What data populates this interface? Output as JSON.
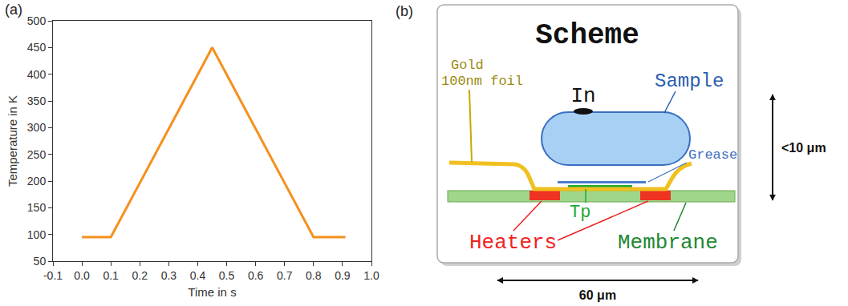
{
  "chart_data": {
    "type": "line",
    "label": "(a)",
    "x": [
      0,
      0.1,
      0.45,
      0.8,
      0.91
    ],
    "values": [
      95,
      95,
      450,
      95,
      95
    ],
    "color": "#f5901e",
    "x_label": "Time in s",
    "y_label": "Temperature in K",
    "xlim": [
      -0.1,
      1.0
    ],
    "xticks": [
      -0.1,
      {
        "value": 0,
        "label": "0.0"
      },
      0.1,
      0.2,
      0.3,
      0.4,
      0.5,
      0.6,
      0.7,
      0.8,
      0.9,
      {
        "value": 1,
        "label": "1.0"
      }
    ],
    "ylim": [
      50,
      500
    ],
    "yticks": [
      50,
      100,
      150,
      200,
      250,
      300,
      350,
      400,
      450,
      500
    ],
    "grid": false
  },
  "scheme": {
    "label": "(b)",
    "title": "Scheme",
    "parts": {
      "indium": "In",
      "sample": "Sample",
      "gold": [
        "Gold",
        "100nm foil"
      ],
      "grease": "Grease",
      "tp": "Tp",
      "heaters": "Heaters",
      "membrane": "Membrane"
    },
    "dimensions": {
      "height": "<10 μm",
      "width": "60 μm"
    }
  }
}
